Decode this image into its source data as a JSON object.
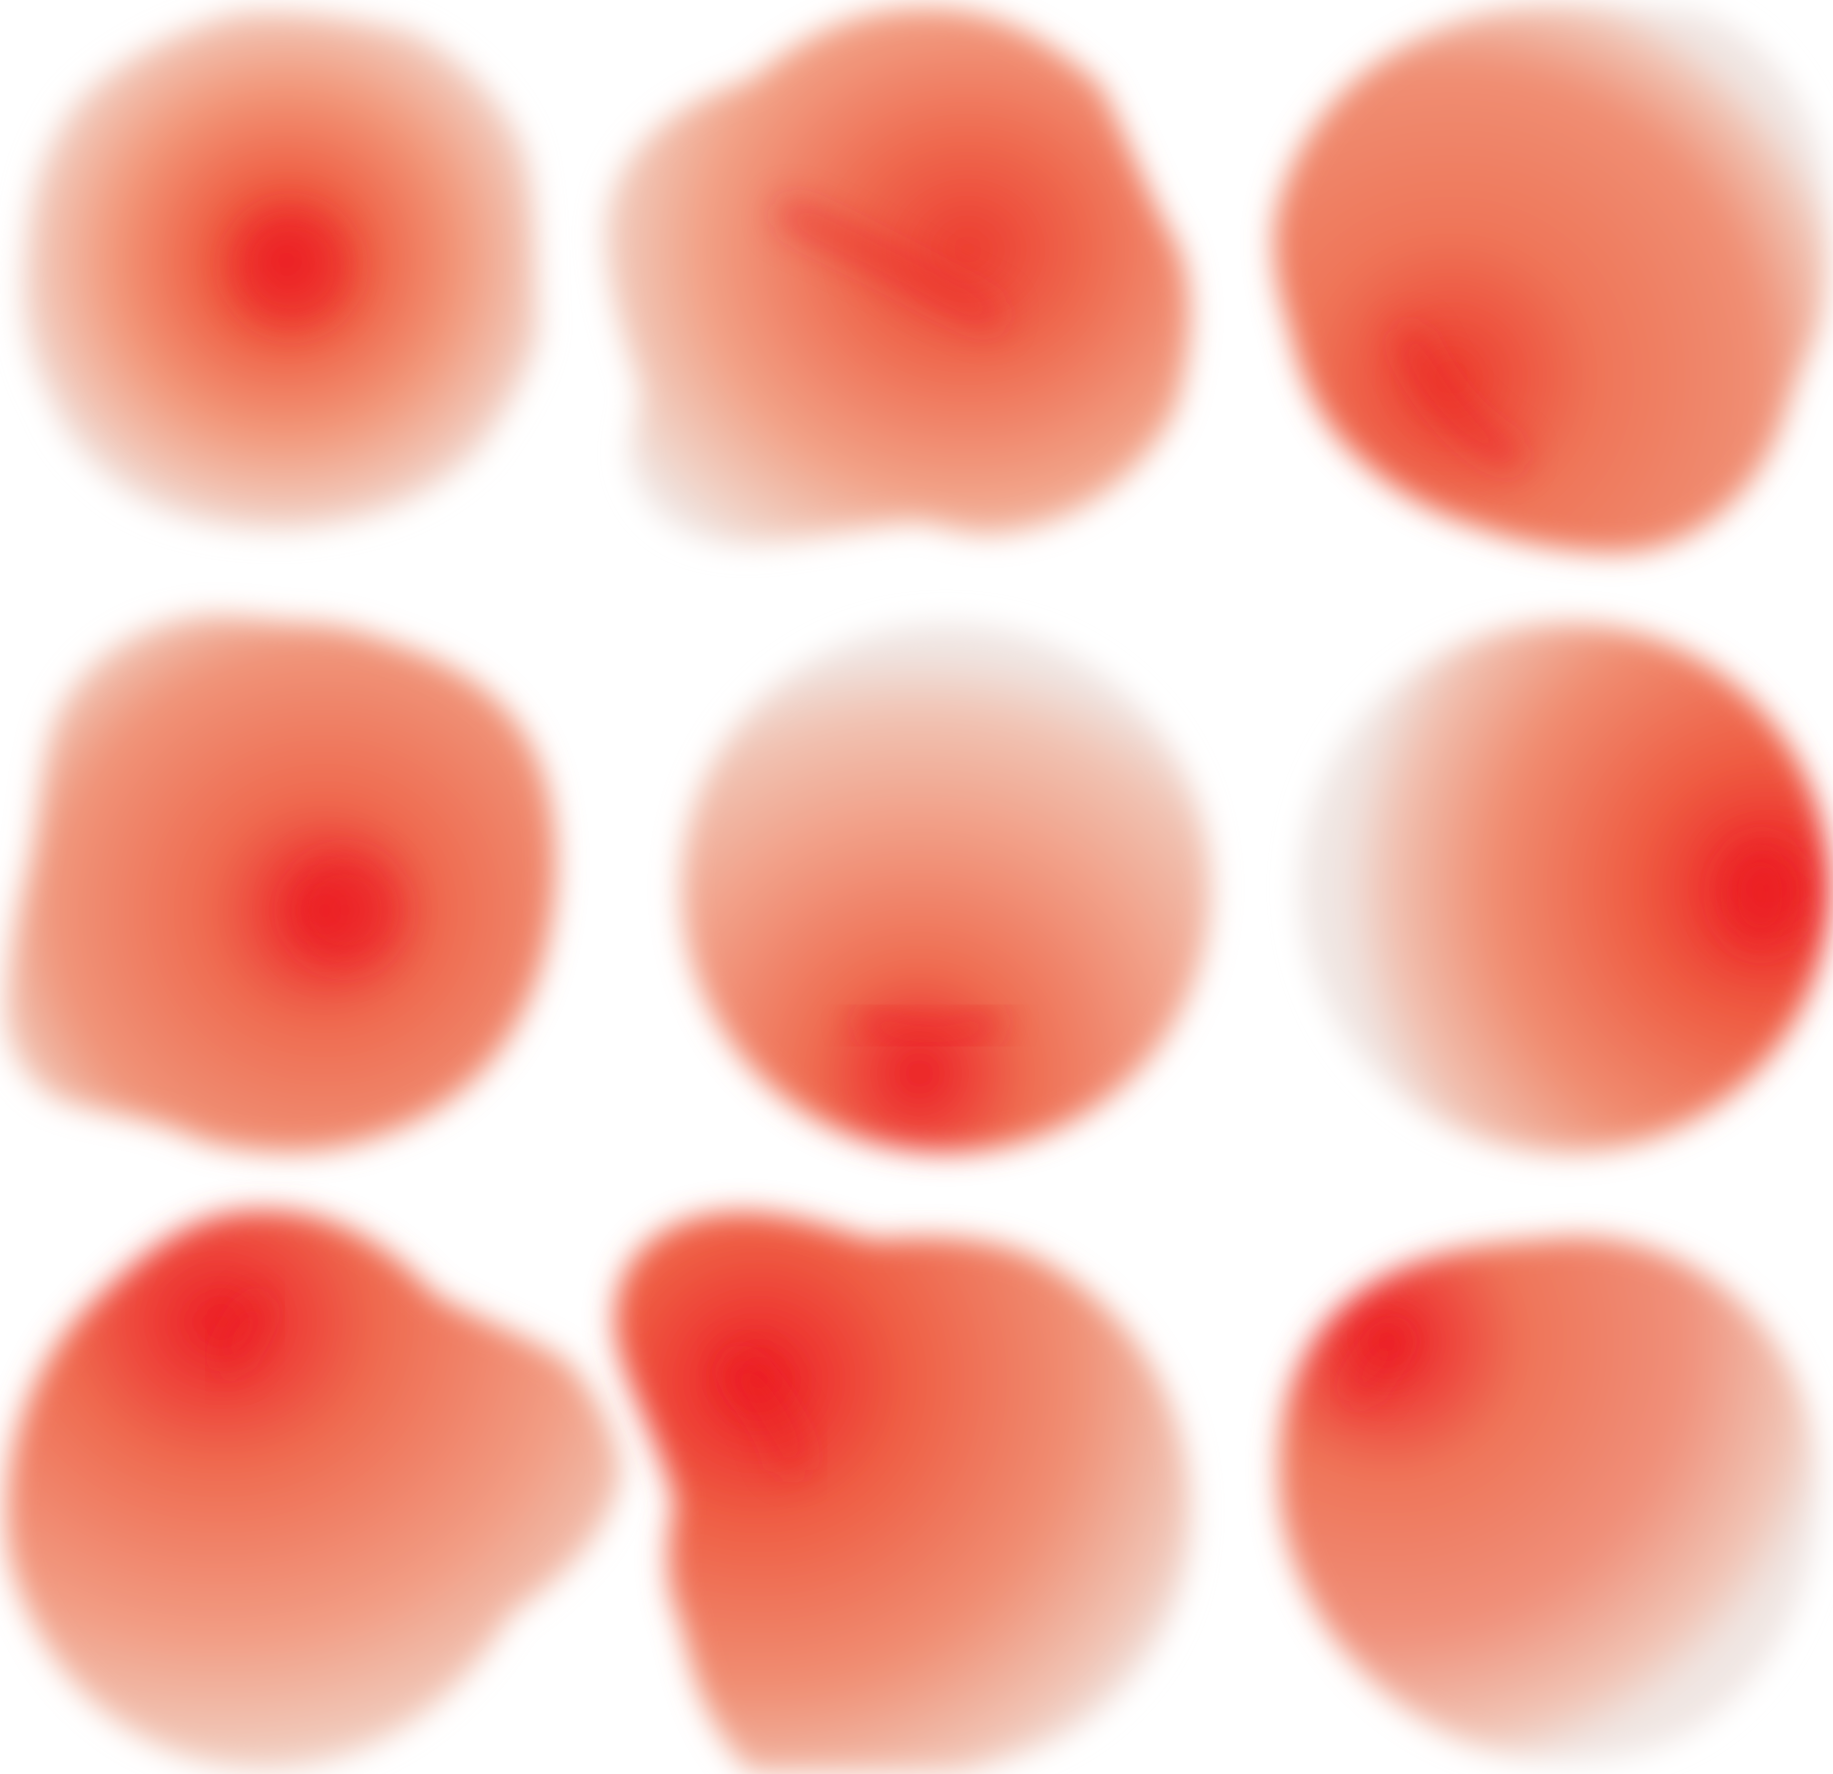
{
  "image": {
    "background_color": "#ffffff",
    "blob_colors": {
      "core": "#ec1c24",
      "mid": "#ef6a4f",
      "light": "#f29c83",
      "edge": "#f0e6e3"
    },
    "blobs": [
      {
        "row": 1,
        "col": 1,
        "shape": "round-irregular",
        "hotspot": "center"
      },
      {
        "row": 1,
        "col": 2,
        "shape": "irregular-triangular",
        "hotspot": "diagonal-streak-center-right"
      },
      {
        "row": 1,
        "col": 3,
        "shape": "round-irregular",
        "hotspot": "lower-left-arc"
      },
      {
        "row": 2,
        "col": 1,
        "shape": "rounded-square",
        "hotspot": "center-right"
      },
      {
        "row": 2,
        "col": 2,
        "shape": "circle",
        "hotspot": "bottom-arc"
      },
      {
        "row": 2,
        "col": 3,
        "shape": "circle",
        "hotspot": "right-edge"
      },
      {
        "row": 3,
        "col": 1,
        "shape": "irregular-lobed",
        "hotspot": "upper-left"
      },
      {
        "row": 3,
        "col": 2,
        "shape": "irregular-lobed",
        "hotspot": "left-center-streak"
      },
      {
        "row": 3,
        "col": 3,
        "shape": "circle",
        "hotspot": "upper-left-arc"
      }
    ]
  }
}
